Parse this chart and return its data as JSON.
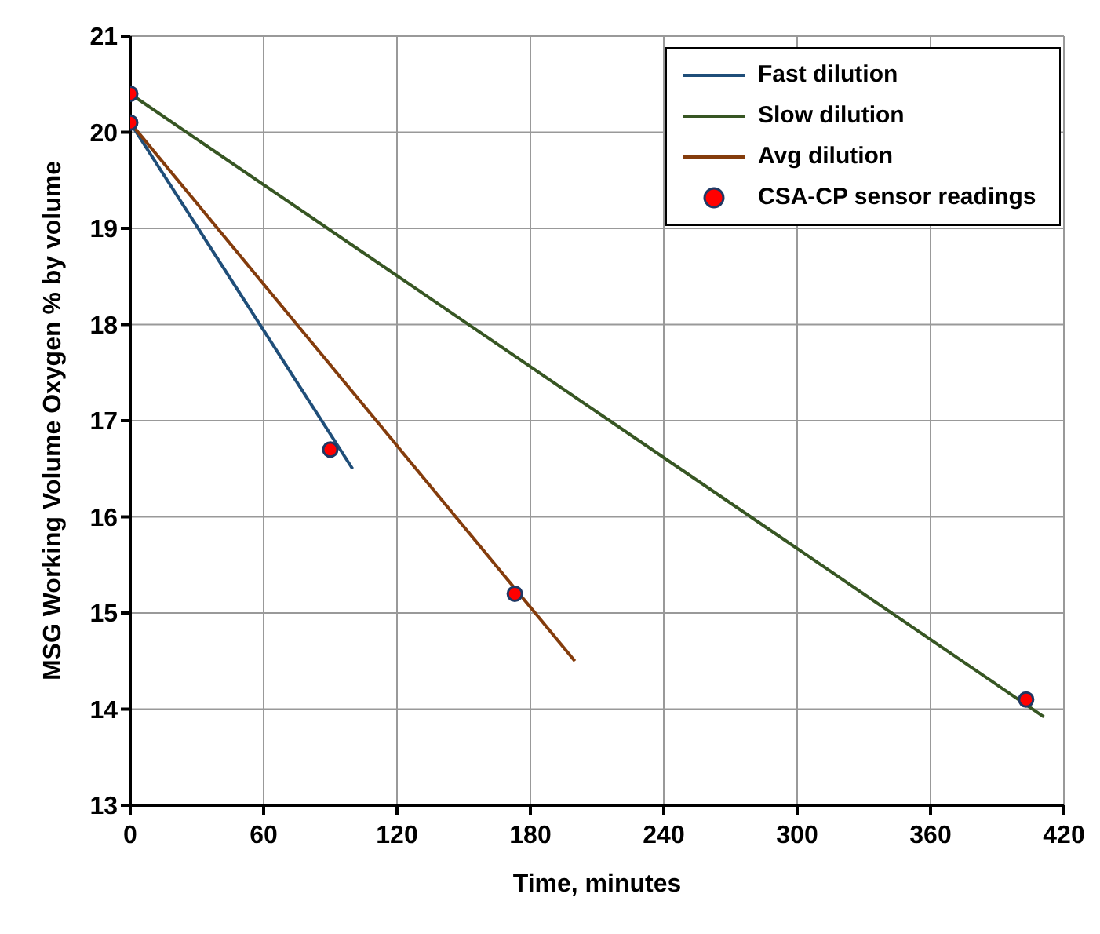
{
  "chart_data": {
    "type": "line",
    "xlabel": "Time, minutes",
    "ylabel": "MSG Working Volume Oxygen % by volume",
    "xlim": [
      0,
      420
    ],
    "xticks": [
      0,
      60,
      120,
      180,
      240,
      300,
      360,
      420
    ],
    "ylim": [
      13,
      21
    ],
    "yticks": [
      13,
      14,
      15,
      16,
      17,
      18,
      19,
      20,
      21
    ],
    "grid": true,
    "legend": "top right",
    "line_style": "solid",
    "series": [
      {
        "name": "Fast dilution",
        "color": "#1f4e79",
        "x": [
          0,
          100
        ],
        "values": [
          20.1,
          16.5
        ],
        "marker": "none"
      },
      {
        "name": "Slow dilution",
        "color": "#375623",
        "x": [
          0,
          411
        ],
        "values": [
          20.4,
          13.92
        ],
        "marker": "none"
      },
      {
        "name": "Avg dilution",
        "color": "#843c0c",
        "x": [
          0,
          200
        ],
        "values": [
          20.1,
          14.5
        ],
        "marker": "none"
      },
      {
        "name": "CSA-CP sensor readings",
        "type": "scatter",
        "color": "#ff0000",
        "x": [
          0,
          0,
          90,
          173,
          403
        ],
        "values": [
          20.4,
          20.1,
          16.7,
          15.2,
          14.1
        ],
        "marker": "circle"
      }
    ]
  }
}
